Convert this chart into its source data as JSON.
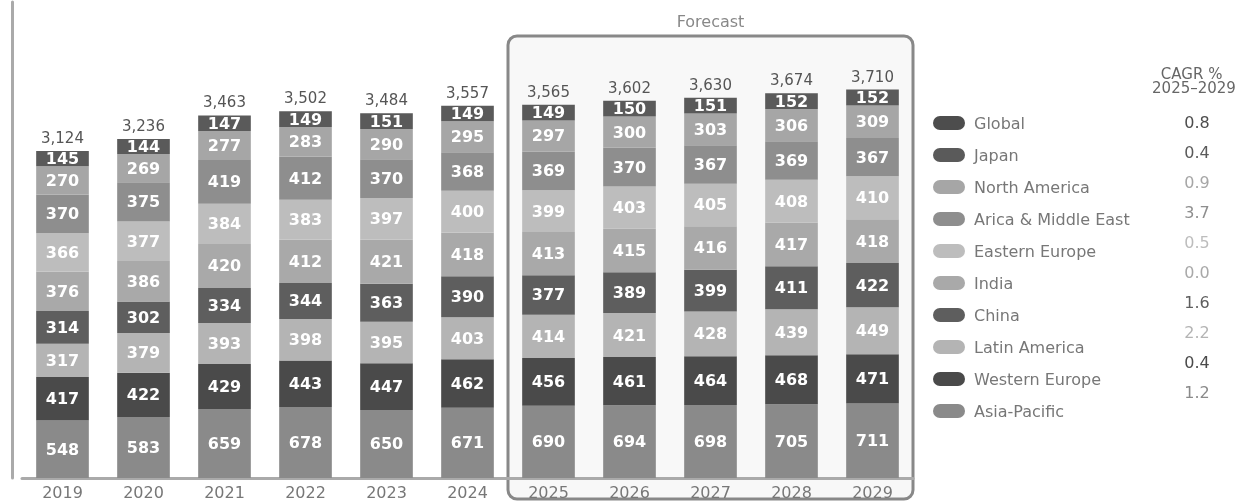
{
  "chart_data": {
    "type": "bar",
    "stacked": true,
    "data_labels": true,
    "grid": false,
    "legend": "right",
    "categories": [
      "2019",
      "2020",
      "2021",
      "2022",
      "2023",
      "2024",
      "2025",
      "2026",
      "2027",
      "2028",
      "2029"
    ],
    "series": [
      {
        "name": "Asia-Pacific",
        "color": "#8a8a8a",
        "values": [
          548,
          583,
          659,
          678,
          650,
          671,
          690,
          694,
          698,
          705,
          711
        ]
      },
      {
        "name": "Western Europe",
        "color": "#4a4a4a",
        "values": [
          417,
          422,
          429,
          443,
          447,
          462,
          456,
          461,
          464,
          468,
          471
        ]
      },
      {
        "name": "Latin America",
        "color": "#b4b4b4",
        "values": [
          317,
          379,
          393,
          398,
          395,
          403,
          414,
          421,
          428,
          439,
          449
        ]
      },
      {
        "name": "China",
        "color": "#5e5e5e",
        "values": [
          314,
          302,
          334,
          344,
          363,
          390,
          377,
          389,
          399,
          411,
          422
        ]
      },
      {
        "name": "India",
        "color": "#a9a9a9",
        "values": [
          376,
          386,
          420,
          412,
          421,
          418,
          413,
          415,
          416,
          417,
          418
        ]
      },
      {
        "name": "Eastern Europe",
        "color": "#bdbdbd",
        "values": [
          366,
          377,
          384,
          383,
          397,
          400,
          399,
          403,
          405,
          408,
          410
        ]
      },
      {
        "name": "Arica & Middle East",
        "color": "#8e8e8e",
        "values": [
          370,
          375,
          419,
          412,
          370,
          368,
          369,
          370,
          367,
          369,
          367
        ]
      },
      {
        "name": "North America",
        "color": "#a6a6a6",
        "values": [
          270,
          269,
          277,
          283,
          290,
          295,
          297,
          300,
          303,
          306,
          309
        ]
      },
      {
        "name": "Japan",
        "color": "#5a5a5a",
        "values": [
          145,
          144,
          147,
          149,
          151,
          149,
          149,
          150,
          151,
          152,
          152
        ]
      },
      {
        "name": "Global",
        "color": "#4d4d4d",
        "values": [
          null,
          null,
          null,
          null,
          null,
          null,
          null,
          null,
          null,
          null,
          null
        ]
      }
    ],
    "totals": [
      "3,124",
      "3,236",
      "3,463",
      "3,502",
      "3,484",
      "3,557",
      "3,565",
      "3,602",
      "3,630",
      "3,674",
      "3,710"
    ],
    "bands": [
      {
        "axis": "x",
        "from": "2025",
        "to": "2029",
        "label": "Forecast",
        "color": "#888888"
      }
    ],
    "legend_title": "CAGR % 2025–2029",
    "annotations": [
      "0.8",
      "0.4",
      "0.9",
      "3.7",
      "0.5",
      "0.0",
      "1.6",
      "2.2",
      "0.4",
      "1.2"
    ]
  }
}
